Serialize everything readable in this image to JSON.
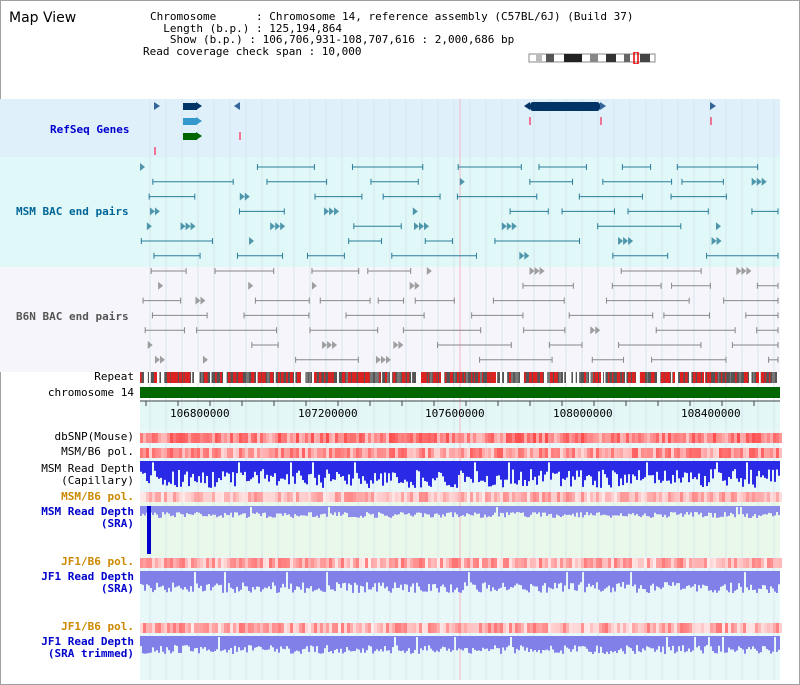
{
  "title": "Map View",
  "info": {
    "chromosome": "Chromosome      : Chromosome 14, reference assembly (C57BL/6J) (Build 37)",
    "length": "  Length (b.p.) : 125,194,864",
    "show": "   Show (b.p.) : 106,706,931-108,707,616 : 2,000,686 bp",
    "coverage": "Read coverage check span : 10,000"
  },
  "labels": {
    "refseq": "RefSeq Genes",
    "msm_bac": "MSM BAC end pairs",
    "b6n_bac": "B6N BAC end pairs",
    "repeat": "Repeat",
    "chrom": "chromosome 14",
    "dbsnp": "dbSNP(Mouse)",
    "msm_b6_pol_1": "MSM/B6 pol.",
    "msm_read_cap_1": "MSM Read Depth",
    "msm_read_cap_2": "(Capillary)",
    "msm_b6_pol_2": "MSM/B6 pol.",
    "msm_read_sra_1": "MSM Read Depth",
    "msm_read_sra_2": "(SRA)",
    "jf1_b6_pol_1": "JF1/B6 pol.",
    "jf1_read_sra_1": "JF1 Read Depth",
    "jf1_read_sra_2": "(SRA)",
    "jf1_b6_pol_2": "JF1/B6 pol.",
    "jf1_read_trim_1": "JF1 Read Depth",
    "jf1_read_trim_2": "(SRA trimmed)"
  },
  "axis": {
    "ticks": [
      "106800000",
      "107200000",
      "107600000",
      "108000000",
      "108400000"
    ]
  },
  "colors": {
    "refseq_bg": "#dff0fb",
    "msm_bg": "#e0f8f8",
    "b6n_bg": "#f5f5fb",
    "label_blue": "#0000cc",
    "label_teal": "#006699",
    "label_orange": "#cc8800",
    "chrom_green": "#006600"
  }
}
